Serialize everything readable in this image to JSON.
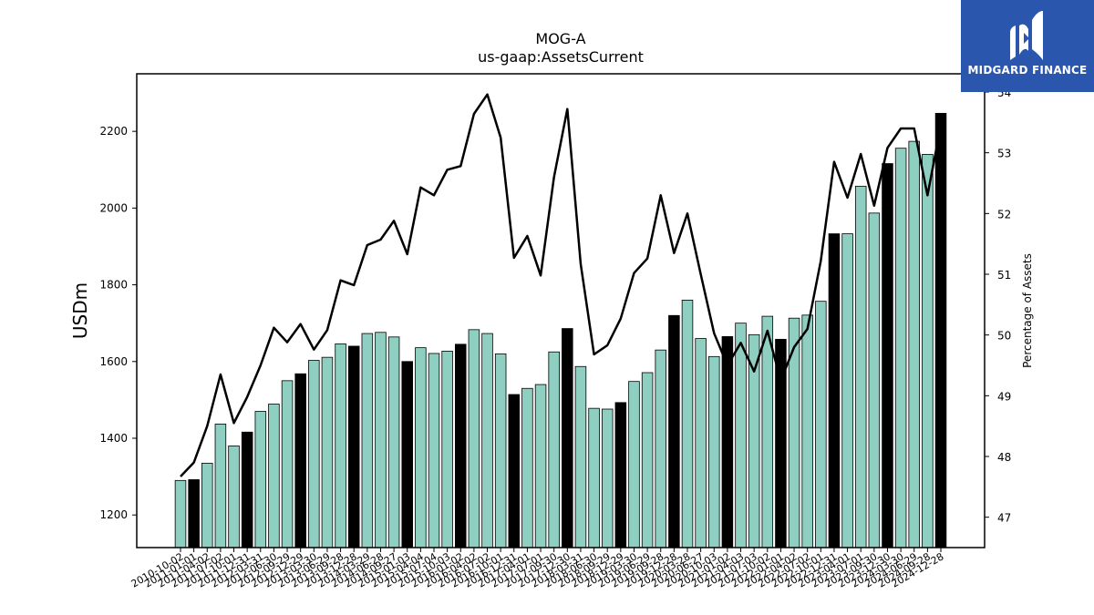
{
  "chart_data": {
    "type": "bar",
    "title": "MOG-A",
    "subtitle": "us-gaap:AssetsCurrent",
    "ylabel": "USDm",
    "y2label": "Percentage of Assets",
    "ylim": [
      1115,
      2350
    ],
    "y2lim": [
      46.5,
      54.3
    ],
    "yticks": [
      1200,
      1400,
      1600,
      1800,
      2000,
      2200
    ],
    "y2ticks": [
      47,
      48,
      49,
      50,
      51,
      52,
      53,
      54
    ],
    "bar_colors": {
      "quarter": "#8ecfc1",
      "fiscal_year_end": "#000000"
    },
    "line_color": "#000000",
    "categories": [
      "2010-10-02",
      "2011-01-01",
      "2011-04-02",
      "2011-07-02",
      "2011-10-01",
      "2011-12-31",
      "2012-03-31",
      "2012-06-30",
      "2012-09-29",
      "2012-12-29",
      "2013-03-30",
      "2013-06-29",
      "2013-09-28",
      "2013-12-28",
      "2014-03-29",
      "2014-06-28",
      "2014-09-27",
      "2015-01-03",
      "2015-04-04",
      "2015-07-04",
      "2015-10-03",
      "2016-01-02",
      "2016-04-02",
      "2016-07-02",
      "2016-10-01",
      "2016-12-31",
      "2017-04-01",
      "2017-07-01",
      "2017-09-30",
      "2017-12-30",
      "2018-03-31",
      "2018-06-30",
      "2018-09-29",
      "2018-12-29",
      "2019-03-30",
      "2019-06-29",
      "2019-09-28",
      "2019-12-28",
      "2020-03-28",
      "2020-06-27",
      "2020-10-03",
      "2021-01-02",
      "2021-04-03",
      "2021-07-03",
      "2021-10-02",
      "2022-01-01",
      "2022-04-02",
      "2022-07-02",
      "2022-10-01",
      "2022-12-31",
      "2023-04-01",
      "2023-07-01",
      "2023-09-30",
      "2023-12-30",
      "2024-03-30",
      "2024-06-29",
      "2024-09-28",
      "2024-12-28"
    ],
    "xtick_labels": [
      "2010-10-02",
      "2011-01-01",
      "2011-04-02",
      "2011-07-02",
      "2011-10-01",
      "2011-12-31",
      "2012-03-31",
      "2012-06-30",
      "2012-09-29",
      "2012-12-29",
      "2013-03-30",
      "2013-06-29",
      "2013-09-28",
      "2013-12-28",
      "2014-03-29",
      "2014-06-28",
      "2014-09-27",
      "2015-01-03",
      "2015-04-04",
      "2015-07-04",
      "2015-10-03",
      "2016-01-02",
      "2016-04-02",
      "2016-07-02",
      "2016-10-01",
      "2016-12-31",
      "2017-04-01",
      "2017-07-01",
      "2017-09-30",
      "2017-12-30",
      "2018-03-31",
      "2018-06-30",
      "2018-09-29",
      "2018-12-29",
      "2019-03-30",
      "2019-06-29",
      "2019-09-28",
      "2019-12-28",
      "2020-03-28",
      "2020-06-27",
      "2020-10-03",
      "2021-01-02",
      "2021-04-03",
      "2021-07-03",
      "2021-10-02",
      "2022-01-01",
      "2022-04-02",
      "2022-07-02",
      "2022-10-01",
      "2022-12-31",
      "2023-04-01",
      "2023-07-01",
      "2023-09-30",
      "2023-12-30",
      "2024-03-30",
      "2024-06-29",
      "2024-09-28",
      "2024-12-28"
    ],
    "fiscal_year_end": [
      false,
      true,
      false,
      false,
      false,
      true,
      false,
      false,
      false,
      true,
      false,
      false,
      false,
      true,
      false,
      false,
      false,
      true,
      false,
      false,
      false,
      true,
      false,
      false,
      false,
      true,
      false,
      false,
      false,
      true,
      false,
      false,
      false,
      true,
      false,
      false,
      false,
      true,
      false,
      false,
      false,
      true,
      false,
      false,
      false,
      true,
      false,
      false,
      false,
      true,
      false,
      false,
      false,
      true,
      false,
      false,
      false,
      true
    ],
    "series": [
      {
        "name": "AssetsCurrent",
        "type": "bar",
        "values": [
          1290,
          1292,
          1335,
          1437,
          1380,
          1416,
          1470,
          1489,
          1550,
          1568,
          1603,
          1611,
          1646,
          1640,
          1673,
          1676,
          1664,
          1600,
          1636,
          1621,
          1627,
          1645,
          1683,
          1673,
          1620,
          1514,
          1530,
          1540,
          1625,
          1686,
          1587,
          1478,
          1476,
          1493,
          1548,
          1571,
          1630,
          1720,
          1760,
          1660,
          1613,
          1665,
          1700,
          1670,
          1718,
          1658,
          1713,
          1721,
          1757,
          1933,
          1933,
          2057,
          1987,
          2116,
          2156,
          2174,
          2140,
          2247
        ]
      },
      {
        "name": "Percentage of Assets",
        "type": "line",
        "axis": "right",
        "values": [
          47.67,
          47.9,
          48.5,
          49.35,
          48.55,
          48.98,
          49.5,
          50.12,
          49.88,
          50.18,
          49.76,
          50.08,
          50.9,
          50.82,
          51.48,
          51.57,
          51.88,
          51.33,
          52.43,
          52.3,
          52.72,
          52.78,
          53.64,
          53.96,
          53.25,
          51.27,
          51.63,
          50.98,
          52.6,
          53.72,
          51.17,
          49.68,
          49.83,
          50.27,
          51.02,
          51.26,
          52.3,
          51.35,
          52.0,
          51.0,
          50.03,
          49.5,
          49.87,
          49.4,
          50.07,
          49.25,
          49.8,
          50.1,
          51.22,
          52.85,
          52.26,
          52.98,
          52.13,
          53.08,
          53.4,
          53.4,
          52.3,
          53.45
        ]
      }
    ],
    "legend": "none",
    "grid": false
  },
  "logo": {
    "text": "MIDGARD FINANCE",
    "icon": "midgard-logo-icon"
  }
}
